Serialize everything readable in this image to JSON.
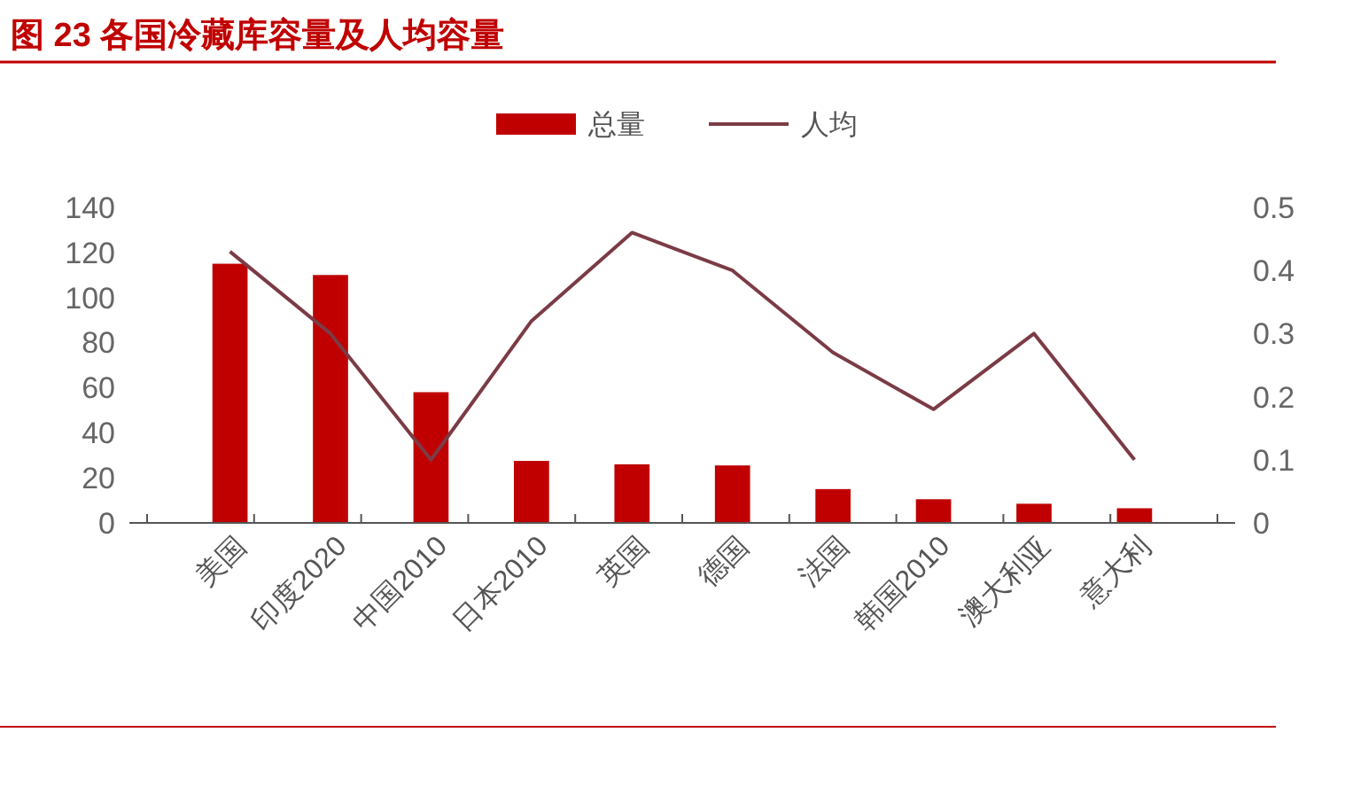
{
  "chart_data": {
    "type": "bar",
    "title": "图 23 各国冷藏库容量及人均容量",
    "categories": [
      "美国",
      "印度2020",
      "中国2010",
      "日本2010",
      "英国",
      "德国",
      "法国",
      "韩国2010",
      "澳大利亚",
      "意大利"
    ],
    "series": [
      {
        "name": "总量",
        "color": "#c00000",
        "values": [
          115,
          110,
          58,
          27.5,
          26,
          25.5,
          15,
          10.5,
          8.5,
          6.5
        ]
      },
      {
        "name": "人均",
        "type": "line",
        "axis": "y2",
        "color": "#7b3b45",
        "values": [
          0.43,
          0.3,
          0.1,
          0.32,
          0.46,
          0.4,
          0.27,
          0.18,
          0.3,
          0.1
        ]
      }
    ],
    "ylim": [
      0,
      140
    ],
    "yticks": [
      0,
      20,
      40,
      60,
      80,
      100,
      120,
      140
    ],
    "y2lim": [
      0,
      0.5
    ],
    "y2ticks": [
      0,
      0.1,
      0.2,
      0.3,
      0.4,
      0.5
    ],
    "grid": false,
    "legend": "top"
  }
}
